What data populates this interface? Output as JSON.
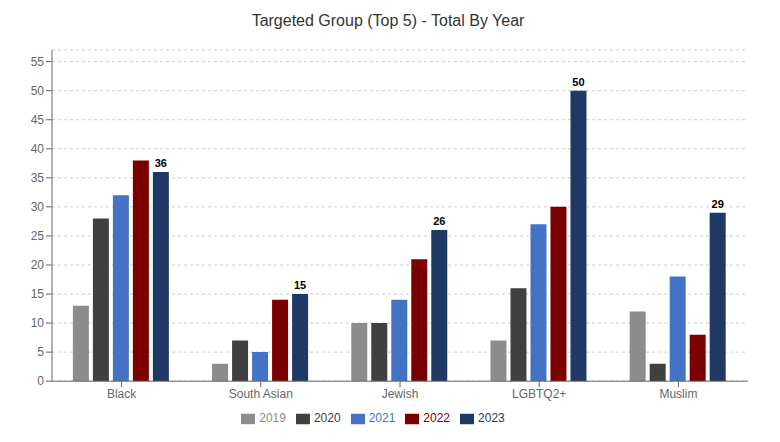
{
  "chart_data": {
    "type": "bar",
    "title": "Targeted Group (Top 5) - Total By Year",
    "categories": [
      "Black",
      "South Asian",
      "Jewish",
      "LGBTQ2+",
      "Muslim"
    ],
    "series": [
      {
        "name": "2019",
        "color": "#8c8c8c",
        "values": [
          13,
          3,
          10,
          7,
          12
        ]
      },
      {
        "name": "2020",
        "color": "#404040",
        "values": [
          28,
          7,
          10,
          16,
          3
        ]
      },
      {
        "name": "2021",
        "color": "#4472C4",
        "values": [
          32,
          5,
          14,
          27,
          18
        ]
      },
      {
        "name": "2022",
        "color": "#7B0000",
        "values": [
          38,
          14,
          21,
          30,
          8
        ]
      },
      {
        "name": "2023",
        "color": "#1F3864",
        "values": [
          36,
          15,
          26,
          50,
          29
        ],
        "data_labels": true
      }
    ],
    "ylim": [
      0,
      57
    ],
    "yticks": [
      0,
      5,
      10,
      15,
      20,
      25,
      30,
      35,
      40,
      45,
      50,
      55
    ],
    "grid": true,
    "legend": "bottom"
  }
}
